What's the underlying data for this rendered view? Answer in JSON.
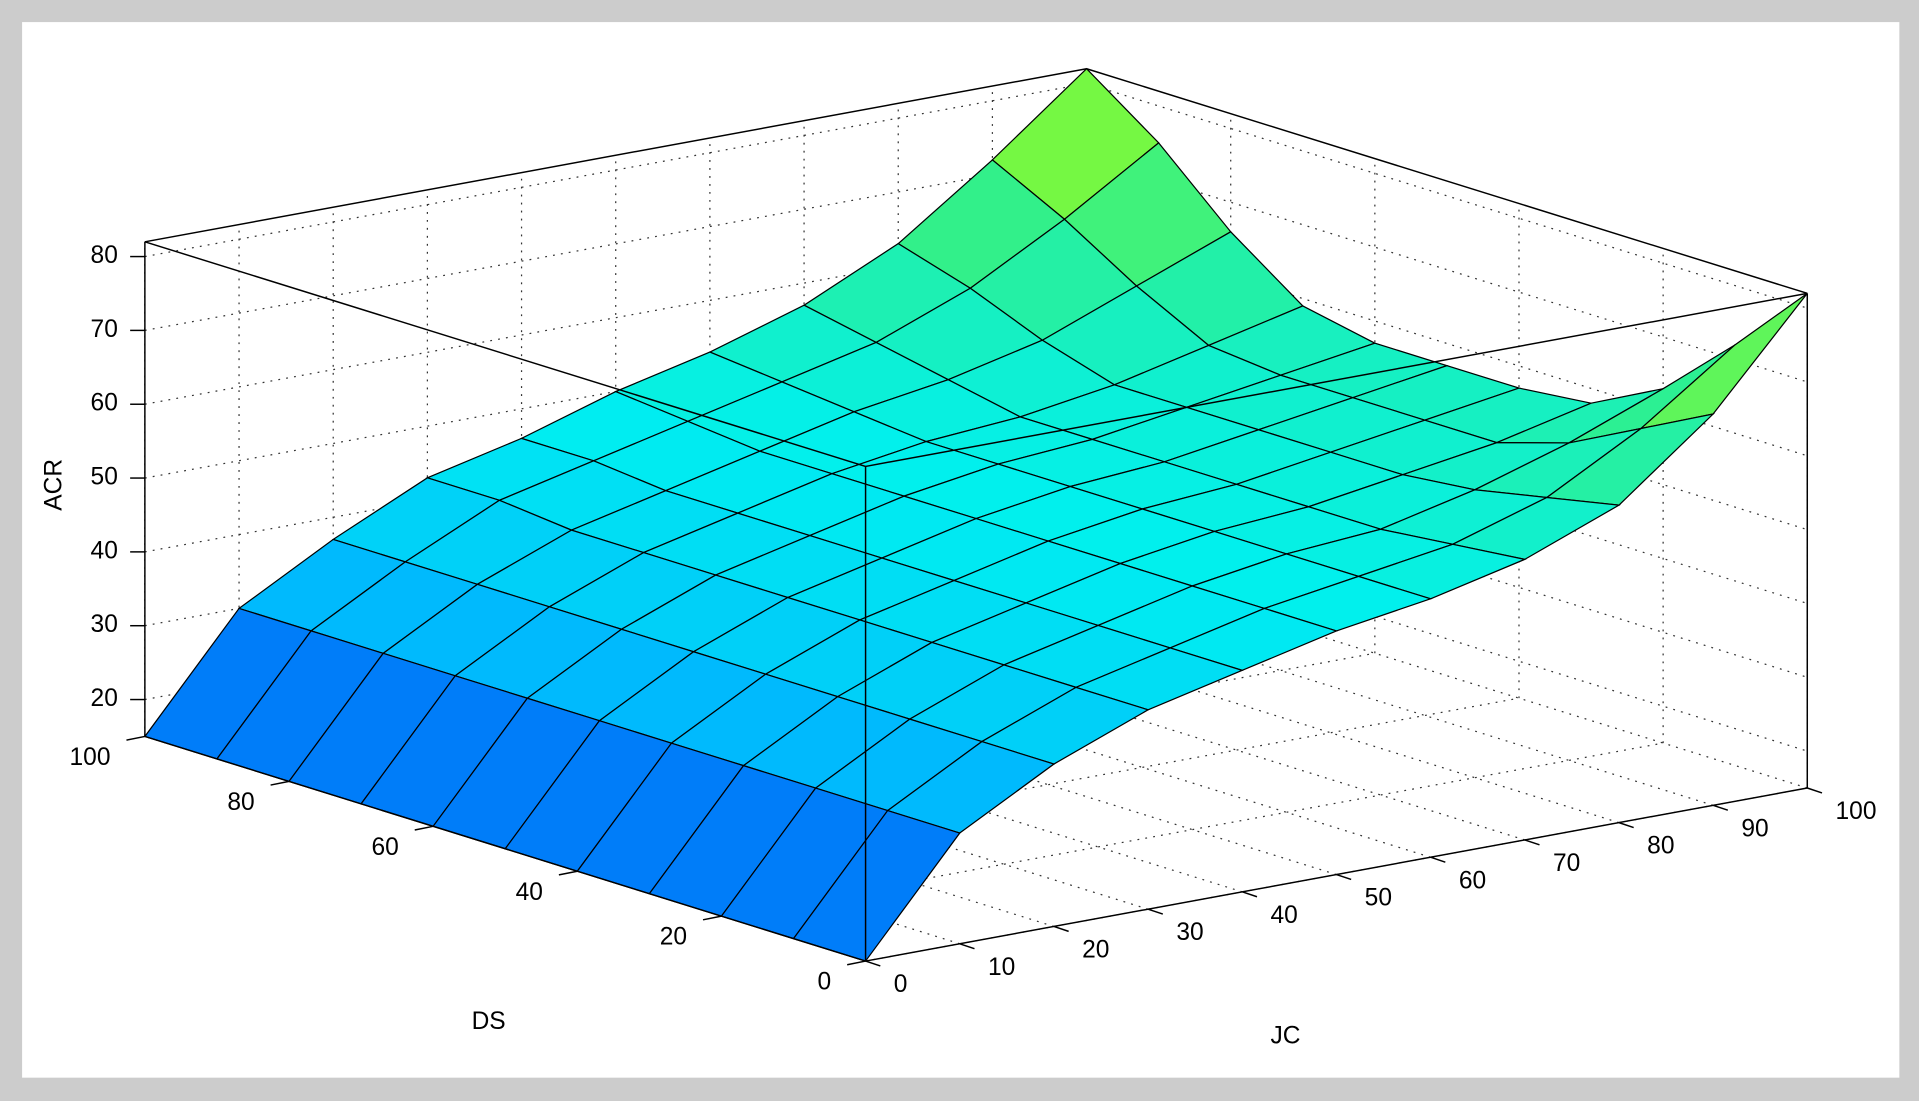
{
  "chart_data": {
    "type": "surface",
    "xlabel": "JC",
    "ylabel": "DS",
    "zlabel": "ACR",
    "x": [
      0,
      10,
      20,
      30,
      40,
      50,
      60,
      70,
      80,
      90,
      100
    ],
    "y": [
      0,
      10,
      20,
      30,
      40,
      50,
      60,
      70,
      80,
      90,
      100
    ],
    "z": [
      [
        15,
        30,
        37,
        42,
        45,
        48,
        50,
        53,
        58,
        68,
        82
      ],
      [
        15,
        30,
        37,
        42,
        45,
        48,
        50,
        52,
        56,
        63,
        72
      ],
      [
        15,
        30,
        37,
        42,
        45,
        48,
        50,
        51,
        54,
        58,
        63
      ],
      [
        15,
        30,
        37,
        42,
        45,
        48,
        50,
        51,
        53,
        55,
        58
      ],
      [
        15,
        30,
        37,
        42,
        45,
        48,
        50,
        51,
        53,
        55,
        57
      ],
      [
        15,
        30,
        37,
        42,
        45,
        48,
        50,
        51,
        53,
        55,
        57
      ],
      [
        15,
        30,
        37,
        42,
        45,
        48,
        50,
        51,
        53,
        55,
        57
      ],
      [
        15,
        30,
        37,
        42,
        45,
        48,
        50,
        51,
        53,
        56,
        59
      ],
      [
        15,
        30,
        37,
        42,
        45,
        48,
        51,
        53,
        56,
        61,
        66
      ],
      [
        15,
        30,
        37,
        43,
        46,
        49,
        52,
        55,
        60,
        67,
        75
      ],
      [
        15,
        30,
        37,
        43,
        46,
        50,
        53,
        57,
        63,
        72,
        82
      ]
    ],
    "xlim": [
      0,
      100
    ],
    "ylim": [
      0,
      100
    ],
    "zlim": [
      15,
      82
    ],
    "xticks": [
      0,
      10,
      20,
      30,
      40,
      50,
      60,
      70,
      80,
      90,
      100
    ],
    "yticks": [
      0,
      20,
      40,
      60,
      80,
      100
    ],
    "zticks": [
      20,
      30,
      40,
      50,
      60,
      70,
      80
    ],
    "grid": true,
    "colormap": [
      "#0050f5",
      "#00b4ff",
      "#00f0f0",
      "#30f08c",
      "#b4ff00"
    ]
  }
}
